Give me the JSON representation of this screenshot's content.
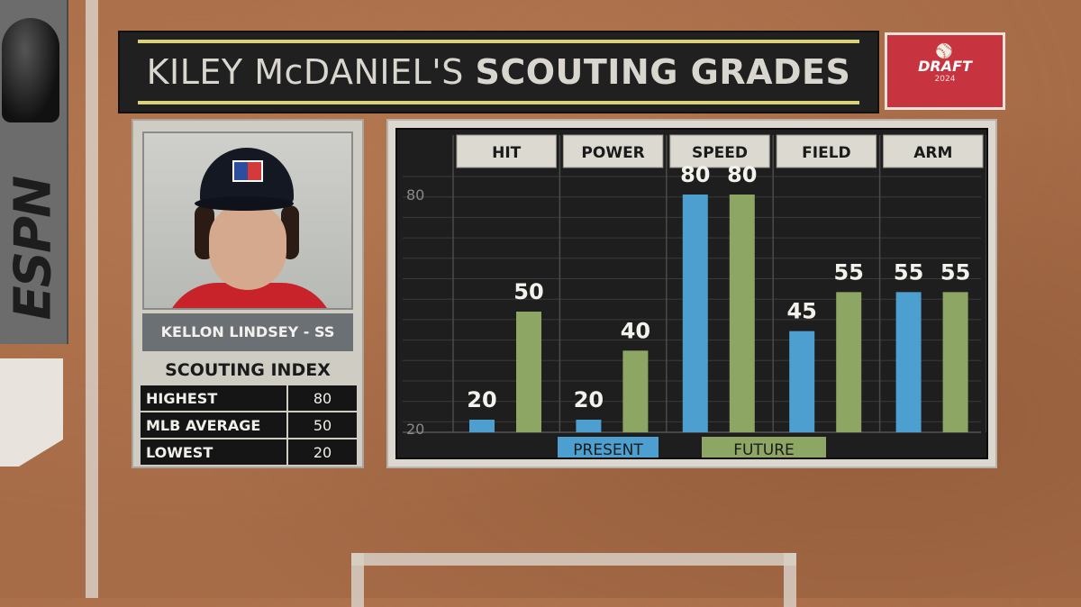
{
  "title": {
    "light": "KILEY McDANIEL'S",
    "bold": "SCOUTING GRADES"
  },
  "badge": {
    "word": "DRAFT",
    "year": "2024"
  },
  "brand": "ESPN",
  "player": {
    "name": "KELLON LINDSEY - SS"
  },
  "scouting_index": {
    "title": "SCOUTING INDEX",
    "rows": [
      {
        "label": "HIGHEST",
        "value": "80"
      },
      {
        "label": "MLB AVERAGE",
        "value": "50"
      },
      {
        "label": "LOWEST",
        "value": "20"
      }
    ]
  },
  "colors": {
    "present": "#4d9fcf",
    "future": "#8ea664",
    "header_bg": "#dcd9d1"
  },
  "chart_data": {
    "type": "bar",
    "categories": [
      "HIT",
      "POWER",
      "SPEED",
      "FIELD",
      "ARM"
    ],
    "series": [
      {
        "name": "PRESENT",
        "values": [
          20,
          20,
          80,
          45,
          55
        ]
      },
      {
        "name": "FUTURE",
        "values": [
          50,
          40,
          80,
          55,
          55
        ]
      }
    ],
    "ylim": [
      20,
      80
    ],
    "yticks": [
      80,
      20
    ],
    "grid": true,
    "legend": "bottom"
  }
}
